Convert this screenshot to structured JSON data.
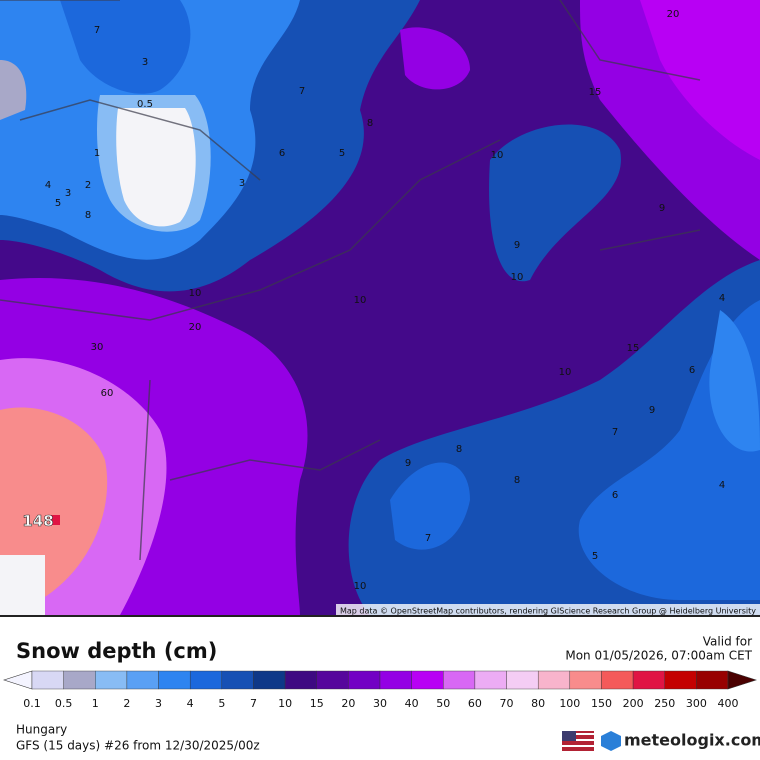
{
  "map": {
    "attribution": "Map data © OpenStreetMap contributors, rendering GIScience Research Group @ Heidelberg University",
    "contour_labels": [
      "7",
      "3",
      "0.5",
      "1",
      "2",
      "3",
      "4",
      "5",
      "8",
      "7",
      "8",
      "6",
      "5",
      "3",
      "10",
      "9",
      "10",
      "10",
      "10",
      "20",
      "30",
      "60",
      "15",
      "20",
      "9",
      "4",
      "15",
      "6",
      "9",
      "10",
      "7",
      "8",
      "9",
      "8",
      "6",
      "4",
      "7",
      "5",
      "10"
    ],
    "max_label": "148"
  },
  "legend": {
    "title": "Snow depth (cm)",
    "valid_label": "Valid for",
    "valid_time": "Mon 01/05/2026, 07:00am CET",
    "labels": [
      "0.1",
      "0.5",
      "1",
      "2",
      "3",
      "4",
      "5",
      "7",
      "10",
      "15",
      "20",
      "30",
      "40",
      "50",
      "60",
      "70",
      "80",
      "100",
      "150",
      "200",
      "250",
      "300",
      "400"
    ],
    "colors": [
      "#d8d8f4",
      "#a8a8c8",
      "#88bcf4",
      "#5aa0f4",
      "#2e84f0",
      "#1c68dc",
      "#1650b4",
      "#0e3888",
      "#3e0a82",
      "#56069c",
      "#7200c4",
      "#9400e4",
      "#b800f4",
      "#d868f4",
      "#ecacf4",
      "#f4cdf4",
      "#f8b4cc",
      "#f88c8c",
      "#f45a5a",
      "#e01444",
      "#c40000",
      "#980000"
    ],
    "low_color": "#f4f4ff",
    "high_color": "#4a0000"
  },
  "footer": {
    "region": "Hungary",
    "model": "GFS (15 days) #26 from  12/30/2025/00z",
    "brand": "meteologix.com"
  }
}
